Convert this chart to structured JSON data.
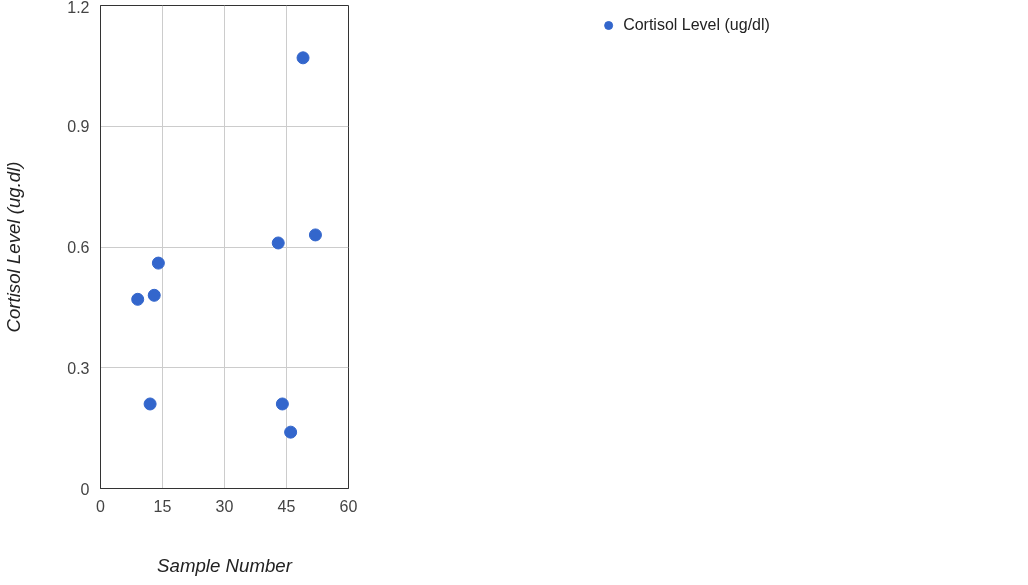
{
  "chart_data": {
    "type": "scatter",
    "xlabel": "Sample Number",
    "ylabel": "Cortisol Level (ug.dl)",
    "x": [
      9,
      12,
      13,
      14,
      43,
      44,
      46,
      49,
      52
    ],
    "series": [
      {
        "name": "Cortisol Level (ug/dl)",
        "color": "#3366cc",
        "values": [
          0.47,
          0.21,
          0.48,
          0.56,
          0.61,
          0.21,
          0.14,
          1.07,
          0.63
        ]
      }
    ],
    "xlim": [
      0,
      60
    ],
    "ylim": [
      0,
      1.2
    ],
    "xticks": [
      0,
      15,
      30,
      45,
      60
    ],
    "yticks": [
      0,
      0.3,
      0.6,
      0.9,
      1.2
    ],
    "grid": true,
    "legend": "top right",
    "marker": "circle"
  }
}
